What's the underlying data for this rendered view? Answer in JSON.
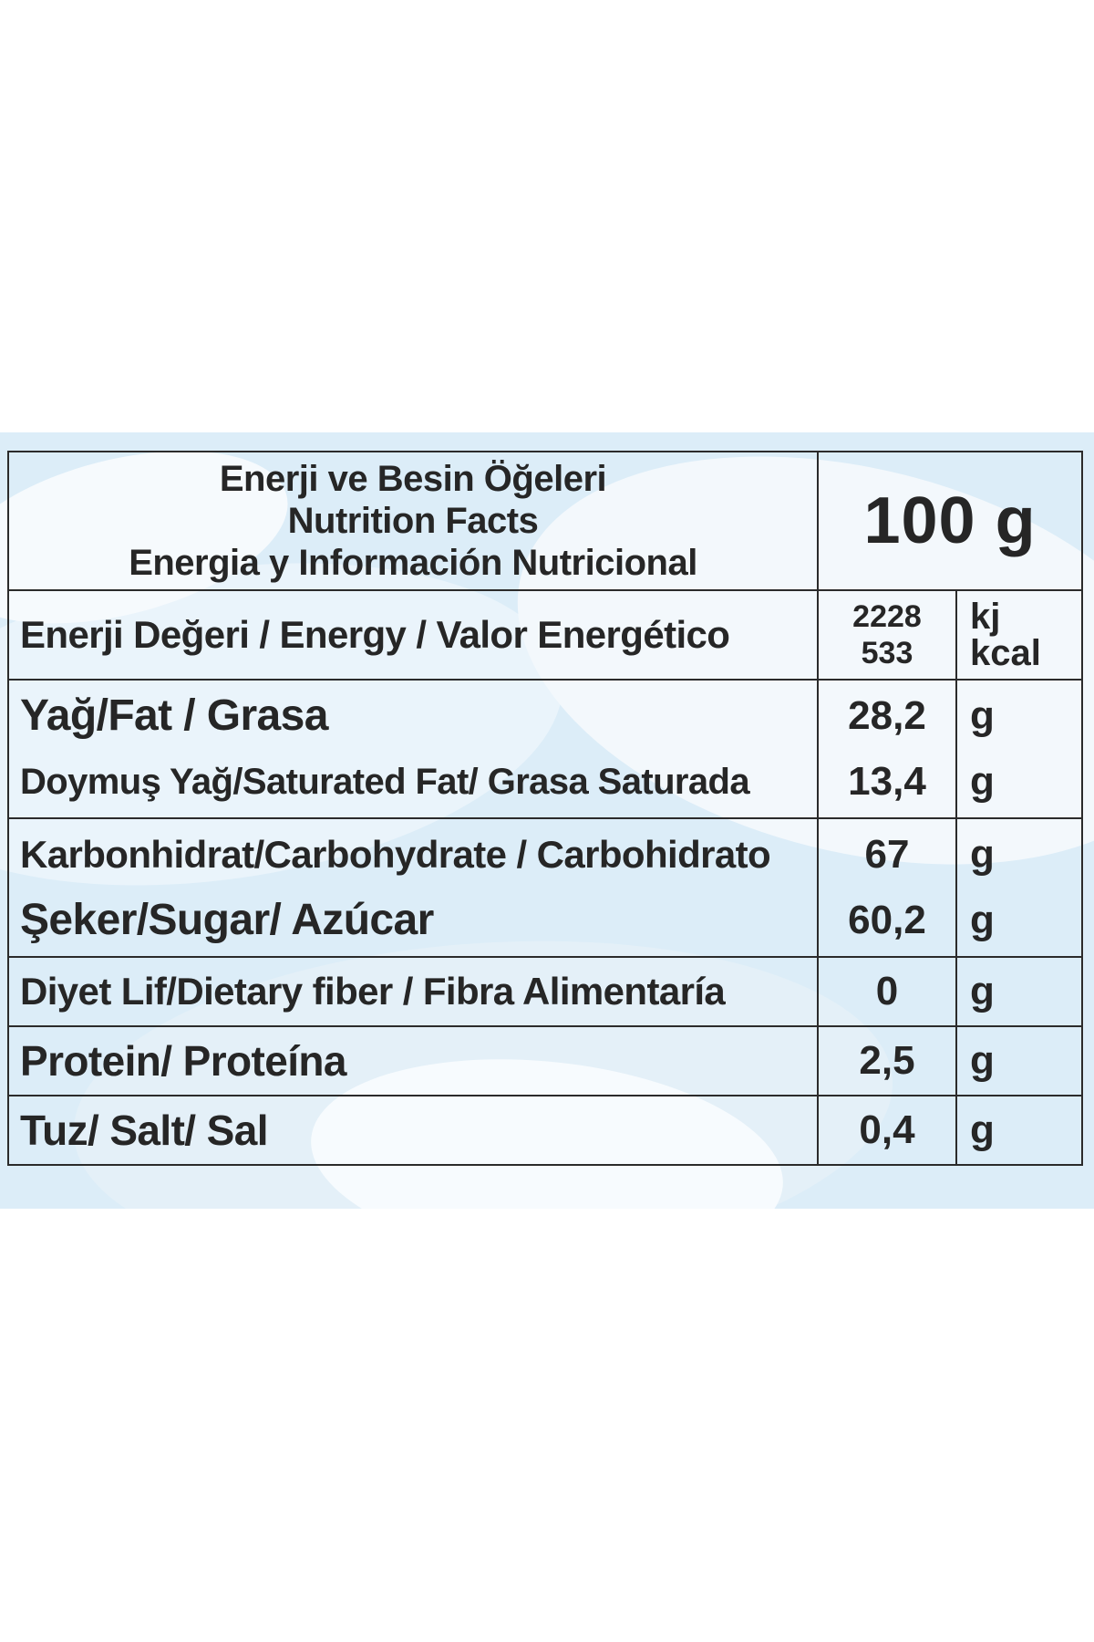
{
  "header": {
    "title_lines": [
      "Enerji ve Besin Öğeleri",
      "Nutrition Facts",
      "Energia y Información Nutricional"
    ],
    "amount": "100 g"
  },
  "energy": {
    "label": "Enerji Değeri / Energy / Valor Energético",
    "values": [
      "2228",
      "533"
    ],
    "units": [
      "kj",
      "kcal"
    ]
  },
  "fat": {
    "label": "Yağ/Fat / Grasa",
    "value": "28,2",
    "unit": "g",
    "saturated": {
      "label": "Doymuş Yağ/Saturated Fat/ Grasa Saturada",
      "value": "13,4",
      "unit": "g"
    }
  },
  "carbohydrate": {
    "label": "Karbonhidrat/Carbohydrate / Carbohidrato",
    "value": "67",
    "unit": "g",
    "sugar": {
      "label": "Şeker/Sugar/ Azúcar",
      "value": "60,2",
      "unit": "g"
    }
  },
  "fiber": {
    "label": "Diyet Lif/Dietary fiber / Fibra Alimentaría",
    "value": "0",
    "unit": "g"
  },
  "protein": {
    "label": "Protein/ Proteína",
    "value": "2,5",
    "unit": "g"
  },
  "salt": {
    "label": "Tuz/ Salt/ Sal",
    "value": "0,4",
    "unit": "g"
  },
  "colors": {
    "panel_background": "#dcedf8",
    "border": "#2b2b2b",
    "text": "#262626"
  }
}
